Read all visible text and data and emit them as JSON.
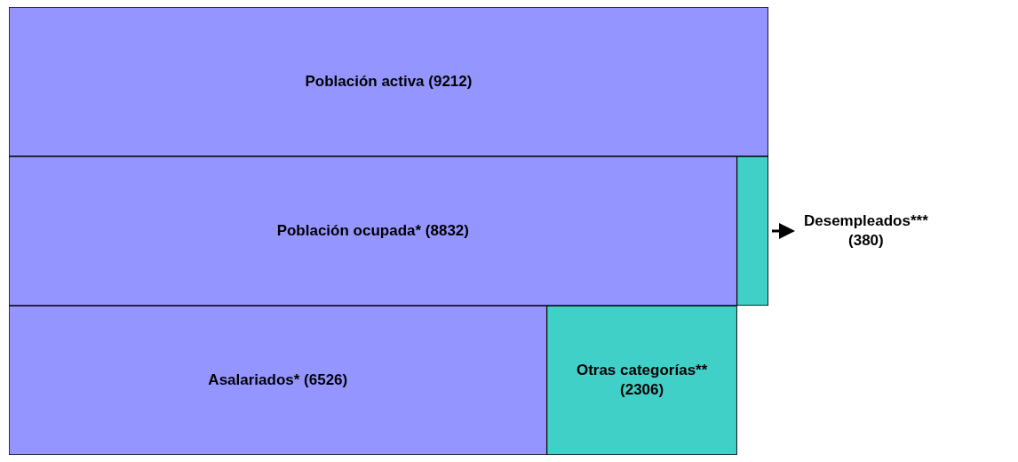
{
  "chart_data": {
    "type": "bar",
    "orientation": "horizontal",
    "stacked": true,
    "categories": [
      null,
      null,
      null
    ],
    "series": [
      {
        "color": "#9595ff",
        "values": [
          9212,
          8832,
          6526
        ],
        "value_labels": [
          "Población activa (9212)",
          "Población ocupada* (8832)",
          "Asalariados* (6526)"
        ]
      },
      {
        "color": "#40d0c8",
        "values": [
          null,
          380,
          2306
        ],
        "value_labels": [
          null,
          "Desempleados*** (380)",
          "Otras categorías** (2306)"
        ]
      }
    ],
    "legend": false
  }
}
